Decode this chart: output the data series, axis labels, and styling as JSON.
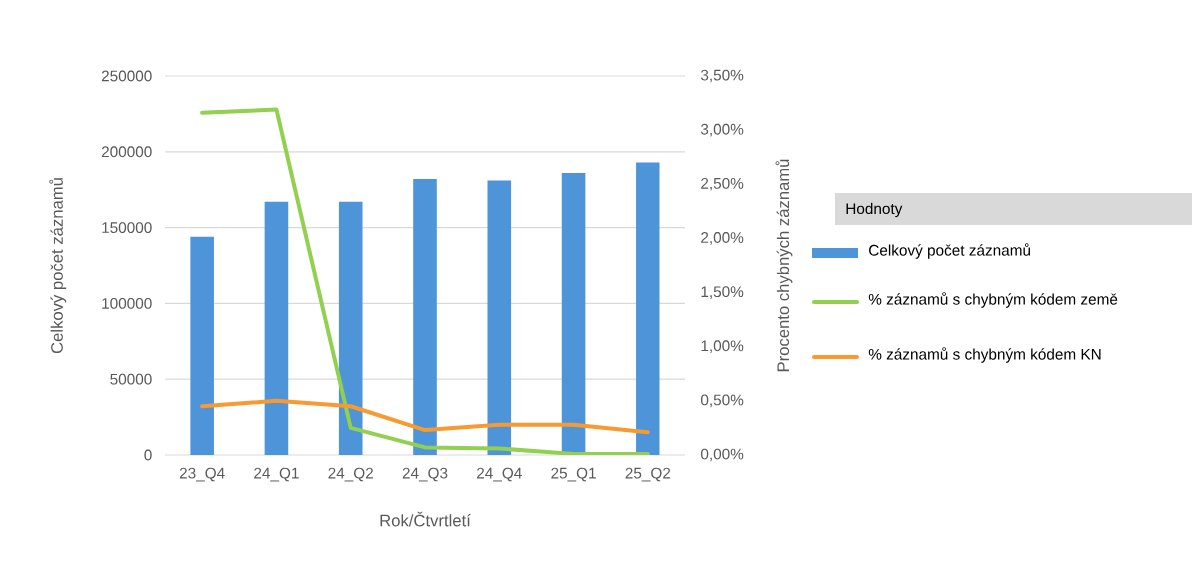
{
  "chart_data": {
    "type": "bar",
    "xlabel": "Rok/Čtvrtletí",
    "ylabel": "Celkový počet záznamů",
    "y2label": "Procento chybných záznamů",
    "legend_title": "Hodnoty",
    "categories": [
      "23_Q4",
      "24_Q1",
      "24_Q2",
      "24_Q3",
      "24_Q4",
      "25_Q1",
      "25_Q2"
    ],
    "series": [
      {
        "name": "Celkový počet záznamů",
        "color": "#4e94d8",
        "values": [
          144000,
          167000,
          167000,
          182000,
          181000,
          186000,
          193000
        ]
      },
      {
        "name": "% záznamů s chybným kódem země",
        "type": "line",
        "axis": "y2",
        "color": "#92d050",
        "values": [
          3.16,
          3.19,
          0.25,
          0.07,
          0.06,
          0.01,
          0.01
        ]
      },
      {
        "name": "% záznamů s chybným kódem KN",
        "type": "line",
        "axis": "y2",
        "color": "#f79a32",
        "values": [
          0.45,
          0.5,
          0.45,
          0.23,
          0.28,
          0.28,
          0.21
        ]
      }
    ],
    "ylim": [
      0,
      250000
    ],
    "yticks": [
      0,
      50000,
      100000,
      150000,
      200000,
      250000
    ],
    "y2lim": [
      0,
      3.5
    ],
    "y2ticks": [
      {
        "value": 0,
        "label": "0,00%"
      },
      {
        "value": 0.5,
        "label": "0,50%"
      },
      {
        "value": 1,
        "label": "1,00%"
      },
      {
        "value": 1.5,
        "label": "1,50%"
      },
      {
        "value": 2,
        "label": "2,00%"
      },
      {
        "value": 2.5,
        "label": "2,50%"
      },
      {
        "value": 3,
        "label": "3,00%"
      },
      {
        "value": 3.5,
        "label": "3,50%"
      }
    ],
    "grid": "y",
    "legend": "right",
    "marker": "none",
    "line_style": "solid"
  }
}
